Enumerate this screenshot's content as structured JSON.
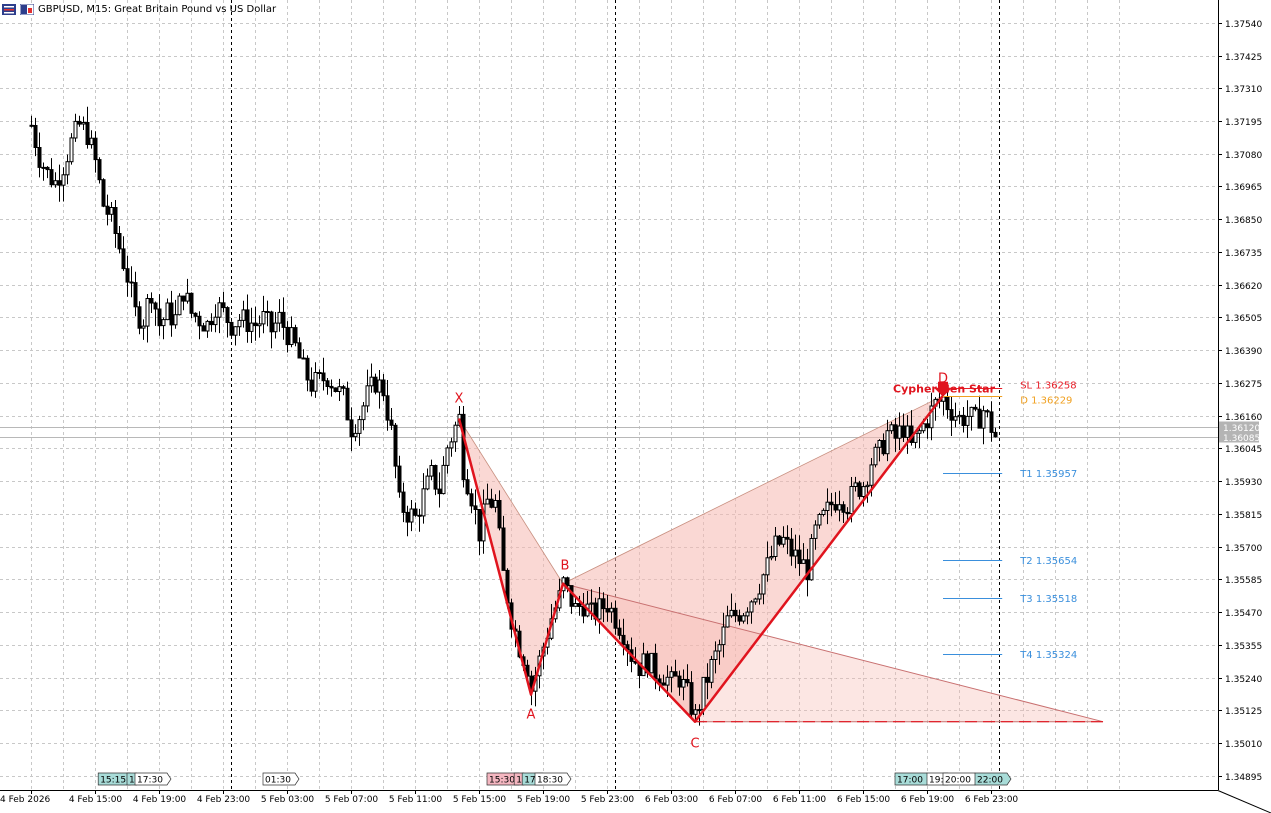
{
  "header": {
    "symbol_title": "GBPUSD, M15:  Great Britain Pound vs US Dollar",
    "icons": [
      "bars-chart-icon",
      "trade-panel-icon"
    ]
  },
  "colors": {
    "pattern_red": "#e0141e",
    "pattern_fill": "#f6b8b0",
    "target_blue": "#3a8fdc",
    "sl_red": "#e81e28",
    "entry_orange": "#f0a020",
    "grid": "#c8c8c8",
    "candle": "#000000",
    "session_teal": "#a8dcd8",
    "session_pink": "#f4b6c0"
  },
  "chart_data": {
    "type": "candlestick",
    "symbol": "GBPUSD",
    "timeframe": "M15",
    "yaxis_ticks": [
      "1.37540",
      "1.37425",
      "1.37310",
      "1.37195",
      "1.37080",
      "1.36965",
      "1.36850",
      "1.36735",
      "1.36620",
      "1.36505",
      "1.36390",
      "1.36275",
      "1.36160",
      "1.36045",
      "1.35930",
      "1.35815",
      "1.35700",
      "1.35585",
      "1.35470",
      "1.35355",
      "1.35240",
      "1.35125",
      "1.35010",
      "1.34895"
    ],
    "ylim": [
      1.34845,
      1.3762
    ],
    "price_labels": [
      "1.36120",
      "1.36085"
    ],
    "price_levels": [
      1.3612,
      1.36085
    ],
    "xaxis_ticks": [
      "4 Feb 2026",
      "4 Feb 15:00",
      "4 Feb 19:00",
      "4 Feb 23:00",
      "5 Feb 03:00",
      "5 Feb 07:00",
      "5 Feb 11:00",
      "5 Feb 15:00",
      "5 Feb 19:00",
      "5 Feb 23:00",
      "6 Feb 03:00",
      "6 Feb 07:00",
      "6 Feb 11:00",
      "6 Feb 15:00",
      "6 Feb 19:00",
      "6 Feb 23:00"
    ],
    "x_hours": [
      11,
      15,
      19,
      23,
      27,
      31,
      35,
      39,
      43,
      47,
      51,
      55,
      59,
      63,
      67,
      71
    ],
    "day_separators_hours": [
      23.5,
      47.5,
      71.5
    ],
    "pattern": {
      "name": "Cypher Hen Star",
      "points": [
        {
          "label": "X",
          "hour": 37.75,
          "price": 1.3615
        },
        {
          "label": "A",
          "hour": 42.25,
          "price": 1.3518
        },
        {
          "label": "B",
          "hour": 44.25,
          "price": 1.3557
        },
        {
          "label": "C",
          "hour": 52.5,
          "price": 1.35085
        },
        {
          "label": "D",
          "hour": 68.0,
          "price": 1.3623
        }
      ],
      "projection_end": {
        "hour": 78.0,
        "price": 1.35085
      }
    },
    "levels": [
      {
        "label": "SL 1.36258",
        "price": 1.36258,
        "kind": "sl"
      },
      {
        "label": "D 1.36229",
        "price": 1.36229,
        "kind": "entry"
      },
      {
        "label": "T1 1.35957",
        "price": 1.35957,
        "kind": "target"
      },
      {
        "label": "T2 1.35654",
        "price": 1.35654,
        "kind": "target"
      },
      {
        "label": "T3 1.35518",
        "price": 1.35518,
        "kind": "target"
      },
      {
        "label": "T4 1.35324",
        "price": 1.35324,
        "kind": "target"
      }
    ],
    "sessions": [
      {
        "label": "15:15",
        "hour": 15.2,
        "style": "teal"
      },
      {
        "label": "1",
        "hour": 17.0,
        "style": "teal"
      },
      {
        "label": "17:30",
        "hour": 17.5,
        "style": "plain"
      },
      {
        "label": "01:30",
        "hour": 25.5,
        "style": "plain"
      },
      {
        "label": "15:30",
        "hour": 39.5,
        "style": "pink"
      },
      {
        "label": "1",
        "hour": 41.2,
        "style": "pink"
      },
      {
        "label": "17:",
        "hour": 41.7,
        "style": "teal"
      },
      {
        "label": "18:30",
        "hour": 42.5,
        "style": "plain"
      },
      {
        "label": "17:00",
        "hour": 65.0,
        "style": "teal"
      },
      {
        "label": "19:",
        "hour": 67.0,
        "style": "plain"
      },
      {
        "label": "20:00",
        "hour": 68.0,
        "style": "plain"
      },
      {
        "label": "22:00",
        "hour": 70.0,
        "style": "teal"
      }
    ],
    "close_path": [
      [
        11.0,
        1.3718
      ],
      [
        11.5,
        1.3707
      ],
      [
        12.0,
        1.3701
      ],
      [
        12.5,
        1.3698
      ],
      [
        13.0,
        1.3704
      ],
      [
        13.5,
        1.3712
      ],
      [
        14.0,
        1.3718
      ],
      [
        14.5,
        1.3715
      ],
      [
        15.0,
        1.3705
      ],
      [
        15.5,
        1.369
      ],
      [
        16.0,
        1.3685
      ],
      [
        16.5,
        1.3675
      ],
      [
        17.0,
        1.3665
      ],
      [
        17.5,
        1.3652
      ],
      [
        18.0,
        1.365
      ],
      [
        18.5,
        1.366
      ],
      [
        19.0,
        1.3648
      ],
      [
        19.5,
        1.3652
      ],
      [
        20.0,
        1.365
      ],
      [
        20.5,
        1.366
      ],
      [
        21.0,
        1.3652
      ],
      [
        21.5,
        1.365
      ],
      [
        22.0,
        1.3648
      ],
      [
        22.5,
        1.3655
      ],
      [
        23.0,
        1.3652
      ],
      [
        23.5,
        1.3648
      ],
      [
        24.0,
        1.365
      ],
      [
        24.5,
        1.3649
      ],
      [
        25.0,
        1.3648
      ],
      [
        25.5,
        1.365
      ],
      [
        26.0,
        1.3646
      ],
      [
        26.5,
        1.365
      ],
      [
        27.0,
        1.3645
      ],
      [
        27.5,
        1.364
      ],
      [
        28.0,
        1.3632
      ],
      [
        28.5,
        1.3627
      ],
      [
        29.0,
        1.3628
      ],
      [
        29.5,
        1.363
      ],
      [
        30.0,
        1.3626
      ],
      [
        30.5,
        1.3622
      ],
      [
        31.0,
        1.3612
      ],
      [
        31.5,
        1.3616
      ],
      [
        32.0,
        1.3623
      ],
      [
        32.5,
        1.3628
      ],
      [
        33.0,
        1.3625
      ],
      [
        33.5,
        1.361
      ],
      [
        34.0,
        1.3585
      ],
      [
        34.5,
        1.3582
      ],
      [
        35.0,
        1.358
      ],
      [
        35.5,
        1.3588
      ],
      [
        36.0,
        1.3595
      ],
      [
        36.5,
        1.359
      ],
      [
        37.0,
        1.3605
      ],
      [
        37.5,
        1.3612
      ],
      [
        37.75,
        1.3615
      ],
      [
        38.0,
        1.3598
      ],
      [
        38.5,
        1.3588
      ],
      [
        39.0,
        1.3575
      ],
      [
        39.5,
        1.3586
      ],
      [
        40.0,
        1.3585
      ],
      [
        40.5,
        1.356
      ],
      [
        41.0,
        1.3545
      ],
      [
        41.5,
        1.3535
      ],
      [
        42.0,
        1.3528
      ],
      [
        42.25,
        1.352
      ],
      [
        42.5,
        1.3525
      ],
      [
        43.0,
        1.3535
      ],
      [
        43.5,
        1.3545
      ],
      [
        44.0,
        1.3552
      ],
      [
        44.25,
        1.3557
      ],
      [
        44.5,
        1.3554
      ],
      [
        45.0,
        1.3548
      ],
      [
        45.5,
        1.355
      ],
      [
        46.0,
        1.3546
      ],
      [
        46.5,
        1.3548
      ],
      [
        47.0,
        1.355
      ],
      [
        47.5,
        1.3545
      ],
      [
        48.0,
        1.354
      ],
      [
        48.5,
        1.3532
      ],
      [
        49.0,
        1.3528
      ],
      [
        49.5,
        1.353
      ],
      [
        50.0,
        1.3526
      ],
      [
        50.5,
        1.3525
      ],
      [
        51.0,
        1.3522
      ],
      [
        51.5,
        1.3524
      ],
      [
        52.0,
        1.3518
      ],
      [
        52.5,
        1.351
      ],
      [
        53.0,
        1.352
      ],
      [
        53.5,
        1.3528
      ],
      [
        54.0,
        1.3535
      ],
      [
        54.5,
        1.3544
      ],
      [
        55.0,
        1.3546
      ],
      [
        55.5,
        1.3548
      ],
      [
        56.0,
        1.3552
      ],
      [
        56.5,
        1.3557
      ],
      [
        57.0,
        1.3563
      ],
      [
        57.5,
        1.357
      ],
      [
        58.0,
        1.3572
      ],
      [
        58.5,
        1.3568
      ],
      [
        59.0,
        1.3565
      ],
      [
        59.5,
        1.3562
      ],
      [
        60.0,
        1.3575
      ],
      [
        60.5,
        1.358
      ],
      [
        61.0,
        1.3585
      ],
      [
        61.5,
        1.3588
      ],
      [
        62.0,
        1.3585
      ],
      [
        62.5,
        1.359
      ],
      [
        63.0,
        1.3592
      ],
      [
        63.5,
        1.36
      ],
      [
        64.0,
        1.3603
      ],
      [
        64.5,
        1.361
      ],
      [
        65.0,
        1.3608
      ],
      [
        65.5,
        1.3612
      ],
      [
        66.0,
        1.3605
      ],
      [
        66.5,
        1.361
      ],
      [
        67.0,
        1.3615
      ],
      [
        67.5,
        1.362
      ],
      [
        68.0,
        1.3622
      ],
      [
        68.5,
        1.3618
      ],
      [
        69.0,
        1.3615
      ],
      [
        69.5,
        1.3616
      ],
      [
        70.0,
        1.3614
      ],
      [
        70.5,
        1.3618
      ],
      [
        71.0,
        1.3612
      ],
      [
        71.3,
        1.3608
      ]
    ]
  }
}
